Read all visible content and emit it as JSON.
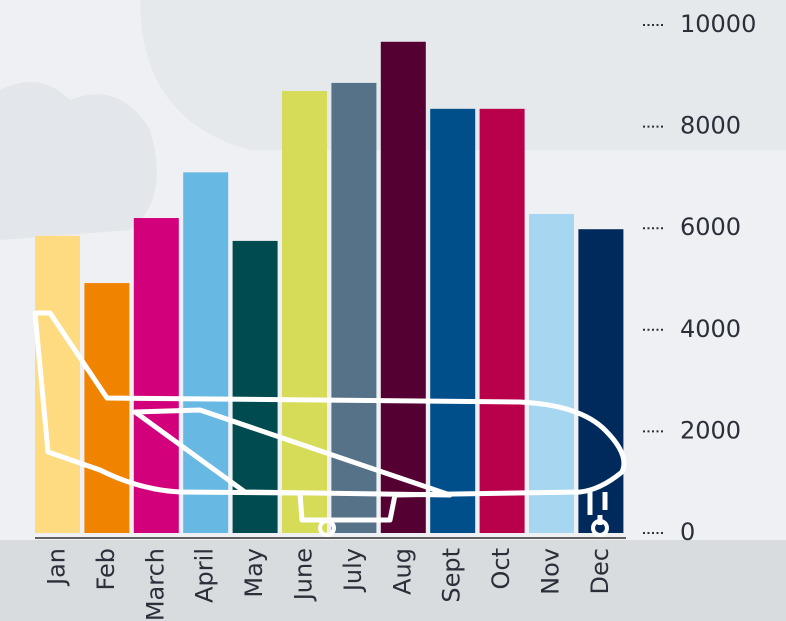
{
  "chart_data": {
    "type": "bar",
    "categories": [
      "Jan",
      "Feb",
      "March",
      "April",
      "May",
      "June",
      "July",
      "Aug",
      "Sept",
      "Oct",
      "Nov",
      "Dec"
    ],
    "values": [
      5850,
      4920,
      6200,
      7100,
      5750,
      8700,
      8860,
      9670,
      8350,
      8350,
      6280,
      5980
    ],
    "colors": [
      "#fedb80",
      "#f08300",
      "#d2007a",
      "#67b8e3",
      "#004b50",
      "#d6dc58",
      "#557288",
      "#540032",
      "#004e8a",
      "#b8004b",
      "#a7d6f0",
      "#002a5c"
    ],
    "ylim": [
      0,
      10000
    ],
    "yticks": [
      0,
      2000,
      4000,
      6000,
      8000,
      10000
    ]
  }
}
